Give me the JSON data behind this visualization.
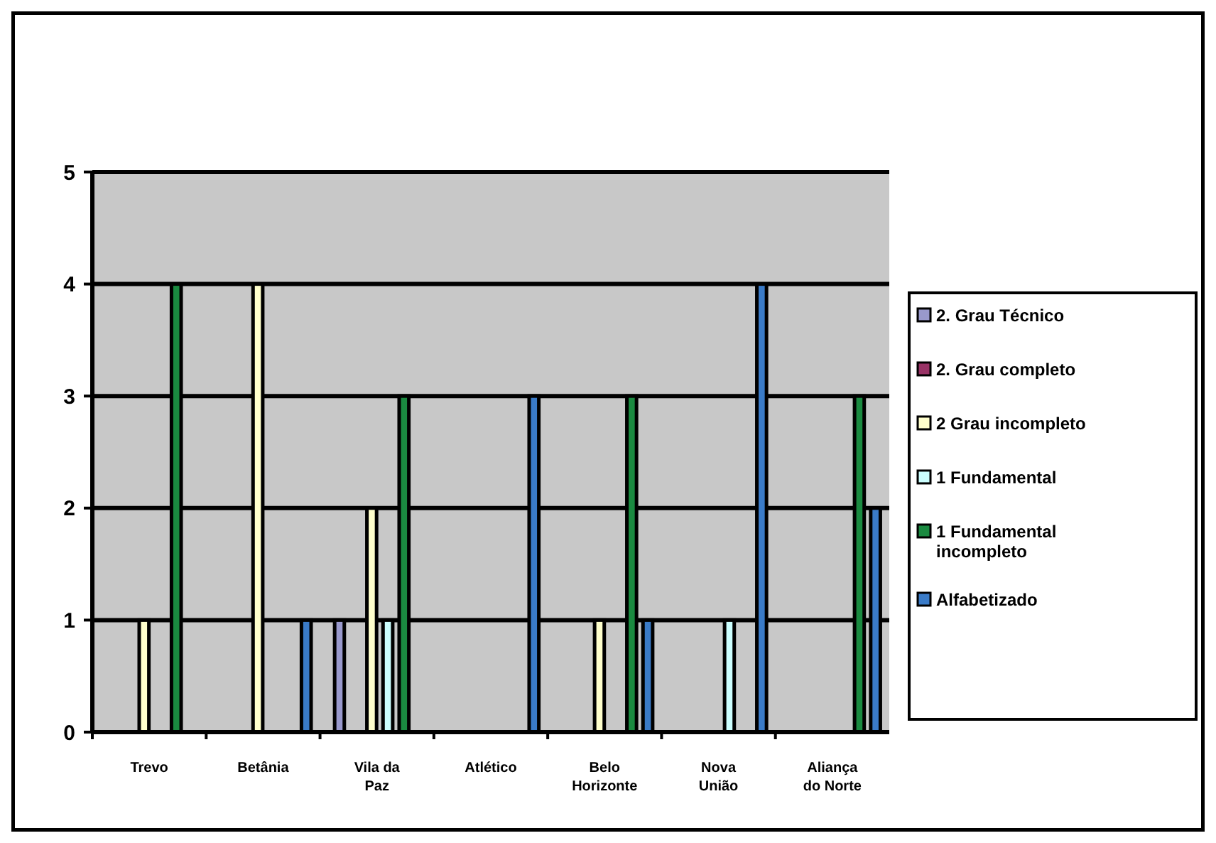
{
  "chart_data": {
    "type": "bar",
    "categories": [
      "Trevo",
      "Betânia",
      "Vila da Paz",
      "Atlético",
      "Belo Horizonte",
      "Nova União",
      "Aliança do Norte"
    ],
    "series": [
      {
        "name": "2. Grau Técnico",
        "color": "#9999cc",
        "values": [
          null,
          null,
          1,
          null,
          null,
          null,
          null
        ]
      },
      {
        "name": "2. Grau completo",
        "color": "#993366",
        "values": [
          null,
          null,
          null,
          null,
          null,
          null,
          null
        ]
      },
      {
        "name": "2 Grau incompleto",
        "color": "#ffffcc",
        "values": [
          1,
          4,
          2,
          null,
          1,
          null,
          null
        ]
      },
      {
        "name": "1 Fundamental",
        "color": "#ccffff",
        "values": [
          null,
          null,
          1,
          null,
          null,
          1,
          null
        ]
      },
      {
        "name": "1 Fundamental incompleto",
        "color": "#1a8a40",
        "values": [
          4,
          null,
          3,
          null,
          3,
          null,
          3
        ]
      },
      {
        "name": "Alfabetizado",
        "color": "#3a7bc8",
        "values": [
          null,
          1,
          null,
          3,
          1,
          4,
          2
        ]
      }
    ],
    "ylim": [
      0,
      5
    ],
    "yticks": [
      0,
      1,
      2,
      3,
      4,
      5
    ],
    "grid": "y",
    "legend": "right"
  }
}
